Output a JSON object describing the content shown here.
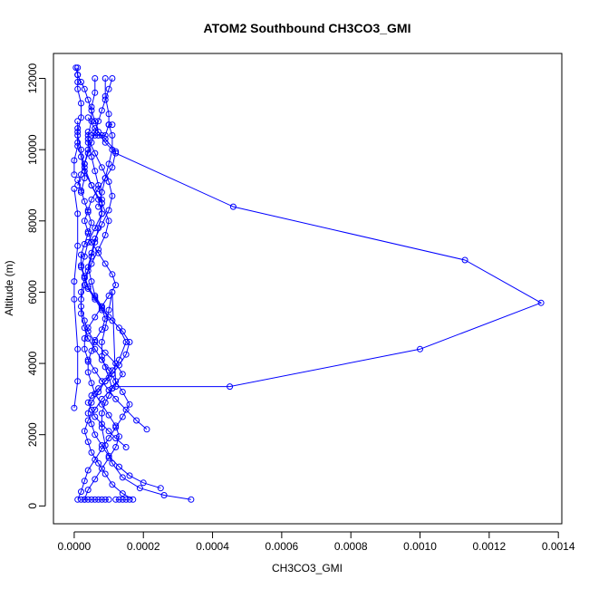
{
  "chart_data": {
    "type": "line",
    "title": "ATOM2 Southbound CH3CO3_GMI",
    "xlabel": "CH3CO3_GMI",
    "ylabel": "Altitude (m)",
    "xlim": [
      -6e-05,
      0.00141
    ],
    "ylim": [
      -500,
      12700
    ],
    "x_ticks": [
      "0.0000",
      "0.0002",
      "0.0004",
      "0.0006",
      "0.0008",
      "0.0010",
      "0.0012",
      "0.0014"
    ],
    "x_tick_values": [
      0,
      0.0002,
      0.0004,
      0.0006,
      0.0008,
      0.001,
      0.0012,
      0.0014
    ],
    "y_ticks": [
      "0",
      "2000",
      "4000",
      "6000",
      "8000",
      "10000",
      "12000"
    ],
    "y_tick_values": [
      0,
      2000,
      4000,
      6000,
      8000,
      10000,
      12000
    ],
    "grid": false,
    "legend": "none",
    "marker": "open-circle",
    "series_color": "#0000ff",
    "series": [
      {
        "x": [
          0.000338,
          0.00026,
          0.00019,
          0.00014,
          0.00011,
          9e-05,
          8e-05,
          8e-05,
          9e-05,
          0.0001,
          0.00011,
          0.0001,
          9e-05,
          8e-05,
          8e-05,
          9e-05,
          0.0001,
          0.00011,
          0.00012,
          0.00045,
          0.001,
          0.00135,
          0.00113,
          0.00046,
          0.00012,
          9e-05,
          7e-05,
          6e-05,
          5e-05,
          4e-05,
          3e-05,
          2e-05,
          1e-05,
          5e-06
        ],
        "y": [
          180,
          300,
          500,
          800,
          1200,
          1700,
          2200,
          2600,
          2900,
          3100,
          3300,
          3600,
          3900,
          4200,
          4600,
          5000,
          5500,
          6000,
          3350,
          3350,
          4400,
          5700,
          6900,
          8400,
          9900,
          10200,
          10500,
          10800,
          11100,
          11400,
          11700,
          11900,
          12100,
          12300
        ]
      },
      {
        "x": [
          1e-05,
          2e-05,
          3e-05,
          4e-05,
          6e-05,
          8e-05,
          0.0001,
          0.00012,
          0.00014,
          0.00016,
          0.00014,
          0.00012,
          0.0001,
          8e-05,
          6e-05,
          4e-05,
          3e-05,
          2e-05,
          2e-05,
          3e-05,
          4e-05,
          5e-05,
          6e-05,
          7e-05,
          8e-05,
          8e-05,
          7e-05,
          6e-05,
          5e-05,
          4e-05,
          4e-05
        ],
        "y": [
          180,
          400,
          700,
          1000,
          1300,
          1600,
          1900,
          2200,
          2500,
          2850,
          3200,
          3500,
          3800,
          4100,
          4400,
          4700,
          5000,
          5400,
          5800,
          6200,
          6600,
          7000,
          7400,
          7800,
          8200,
          8600,
          9000,
          9400,
          9800,
          10200,
          10500
        ]
      },
      {
        "x": [
          0.00017,
          0.00014,
          0.00011,
          9e-05,
          7e-05,
          5e-05,
          4e-05,
          3e-05,
          4e-05,
          6e-05,
          8e-05,
          0.00011,
          0.00014,
          0.00012,
          9e-05,
          6e-05,
          4e-05,
          3e-05,
          2e-05,
          2e-05,
          3e-05,
          5e-05,
          7e-05,
          9e-05,
          0.0001,
          8e-05,
          5e-05,
          3e-05,
          2e-05,
          1e-05,
          1e-05
        ],
        "y": [
          180,
          350,
          600,
          900,
          1200,
          1500,
          1800,
          2100,
          2400,
          2700,
          3000,
          3300,
          3700,
          4000,
          4300,
          4600,
          4900,
          5200,
          5600,
          6000,
          6400,
          6800,
          7200,
          7600,
          8000,
          8500,
          9000,
          9500,
          10000,
          10400,
          10800
        ]
      },
      {
        "x": [
          0.00025,
          0.0002,
          0.00016,
          0.00013,
          0.0001,
          8e-05,
          6e-05,
          5e-05,
          4e-05,
          5e-05,
          7e-05,
          9e-05,
          0.00011,
          0.00013,
          0.00015,
          0.00013,
          0.0001,
          8e-05,
          6e-05,
          5e-05,
          4e-05,
          5e-05,
          6e-05,
          8e-05,
          0.0001,
          0.00011,
          0.0001,
          8e-05,
          6e-05,
          4e-05
        ],
        "y": [
          500,
          650,
          850,
          1100,
          1400,
          1700,
          2000,
          2300,
          2600,
          2900,
          3200,
          3500,
          3800,
          4100,
          4600,
          5000,
          5300,
          5600,
          5900,
          6300,
          6700,
          7100,
          7500,
          7900,
          8300,
          8700,
          9100,
          9500,
          9900,
          10300
        ]
      },
      {
        "x": [
          0.00021,
          0.00018,
          0.00015,
          0.00012,
          0.0001,
          8e-05,
          6e-05,
          4e-05,
          3e-05,
          3e-05,
          4e-05,
          6e-05,
          8e-05,
          0.0001,
          0.00012,
          0.00011,
          9e-05,
          7e-05,
          5e-05,
          4e-05,
          3e-05,
          4e-05,
          5e-05,
          7e-05,
          9e-05,
          0.00011,
          0.00012,
          9e-05,
          6e-05,
          4e-05
        ],
        "y": [
          2150,
          2400,
          2700,
          3000,
          3250,
          3500,
          3800,
          4100,
          4400,
          4700,
          5000,
          5300,
          5600,
          5900,
          6200,
          6500,
          6800,
          7100,
          7400,
          7700,
          8000,
          8300,
          8600,
          8900,
          9200,
          9500,
          9950,
          10300,
          10600,
          10900
        ]
      },
      {
        "x": [
          0.00015,
          0.00012,
          0.0001,
          8e-05,
          6e-05,
          5e-05,
          4e-05,
          5e-05,
          7e-05,
          9e-05,
          0.00011,
          0.00013,
          0.00015,
          0.00016,
          0.00014,
          0.00011,
          8e-05,
          6e-05,
          4e-05,
          3e-05,
          2e-05,
          3e-05,
          4e-05,
          6e-05,
          8e-05,
          7e-05,
          5e-05,
          3e-05,
          2e-05,
          1e-05,
          1e-05
        ],
        "y": [
          1650,
          1900,
          2100,
          2300,
          2500,
          2700,
          2900,
          3100,
          3300,
          3500,
          3700,
          3950,
          4250,
          4600,
          4900,
          5200,
          5500,
          5800,
          6100,
          6400,
          6700,
          7000,
          7400,
          7800,
          8200,
          8600,
          9000,
          9400,
          9800,
          10200,
          10600
        ]
      },
      {
        "x": [
          3e-05,
          4e-05,
          6e-05,
          8e-05,
          0.0001,
          0.00012,
          0.00013,
          0.00012,
          0.0001,
          8e-05,
          6e-05,
          5e-05,
          4e-05,
          4e-05,
          5e-05,
          6e-05,
          8e-05,
          9e-05,
          8e-05,
          6e-05,
          4e-05,
          3e-05,
          2e-05,
          2e-05,
          3e-05,
          4e-05,
          5e-05,
          4e-05,
          3e-05,
          2e-05,
          1e-05
        ],
        "y": [
          180,
          450,
          750,
          1050,
          1350,
          1650,
          1950,
          2250,
          2550,
          2850,
          3150,
          3450,
          3750,
          4050,
          4350,
          4650,
          4950,
          5250,
          5550,
          5850,
          6150,
          6450,
          6750,
          7050,
          7350,
          7650,
          7950,
          8250,
          8550,
          8850,
          9150
        ]
      },
      {
        "x": [
          0.00011,
          0.0001,
          9e-05,
          8e-05,
          7e-05,
          6e-05,
          5e-05,
          4e-05,
          3e-05,
          2e-05,
          1e-05
        ],
        "y": [
          12000,
          11700,
          11400,
          11100,
          10800,
          10500,
          10200,
          9900,
          9600,
          9300,
          9000
        ]
      },
      {
        "x": [
          9e-05,
          9e-05,
          0.0001,
          0.0001,
          0.00011,
          0.00011,
          0.0001,
          9e-05,
          8e-05,
          7e-05
        ],
        "y": [
          12000,
          11500,
          11000,
          10700,
          10400,
          10000,
          9600,
          9200,
          8800,
          8400
        ]
      },
      {
        "x": [
          6e-05,
          6e-05,
          5e-05,
          5e-05,
          4e-05,
          4e-05,
          3e-05,
          3e-05,
          2e-05
        ],
        "y": [
          12000,
          11600,
          11200,
          10800,
          10400,
          10000,
          9600,
          9200,
          8800
        ]
      },
      {
        "x": [
          1e-05,
          1e-05,
          1e-05,
          1e-05,
          2e-05,
          2e-05,
          1e-05,
          1e-05,
          0.0,
          0.0
        ],
        "y": [
          12300,
          12100,
          11900,
          11700,
          11300,
          10900,
          10500,
          10100,
          9700,
          9300
        ]
      },
      {
        "x": [
          0.0,
          1e-05,
          1e-05,
          0.0,
          0.0,
          1e-05,
          1e-05,
          0.0
        ],
        "y": [
          8900,
          8200,
          7300,
          6300,
          5800,
          4400,
          3500,
          2750
        ]
      },
      {
        "x": [
          2e-05,
          3e-05,
          4e-05,
          5e-05,
          6e-05,
          7e-05,
          8e-05,
          9e-05,
          0.0001
        ],
        "y": [
          180,
          180,
          180,
          180,
          180,
          180,
          180,
          180,
          180
        ]
      },
      {
        "x": [
          0.00012,
          0.00013,
          0.00014,
          0.00015,
          0.00016
        ],
        "y": [
          180,
          180,
          180,
          180,
          180
        ]
      },
      {
        "x": [
          5e-05,
          6e-05,
          7e-05,
          8e-05,
          9e-05,
          0.0001,
          0.00011
        ],
        "y": [
          10400,
          10400,
          10400,
          10400,
          10400,
          10700,
          10700
        ]
      }
    ]
  }
}
